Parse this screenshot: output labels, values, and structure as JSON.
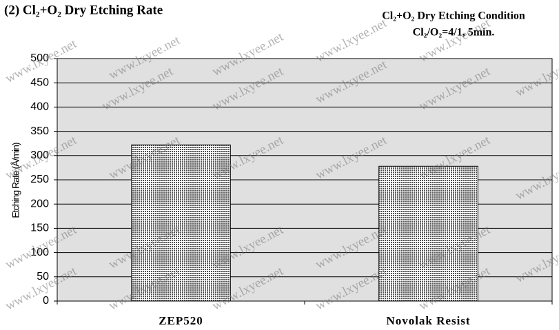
{
  "chart_data": {
    "type": "bar",
    "title": "(2) Cl₂+O₂ Dry Etching Rate",
    "annotations": [
      "Cl₂+O₂ Dry Etching Condition",
      "Cl₂/O₂=4/1, 5min."
    ],
    "y_label": "Etching Rate (Å/min)",
    "watermark": "www.lxyee.net",
    "categories": [
      "ZEP520",
      "Novolak Resist"
    ],
    "values": [
      322,
      278
    ],
    "color": "#b0b0b0",
    "ylim": [
      0,
      500
    ],
    "yticks": [
      0,
      50,
      100,
      150,
      200,
      250,
      300,
      350,
      400,
      450,
      500
    ],
    "grid": true
  }
}
